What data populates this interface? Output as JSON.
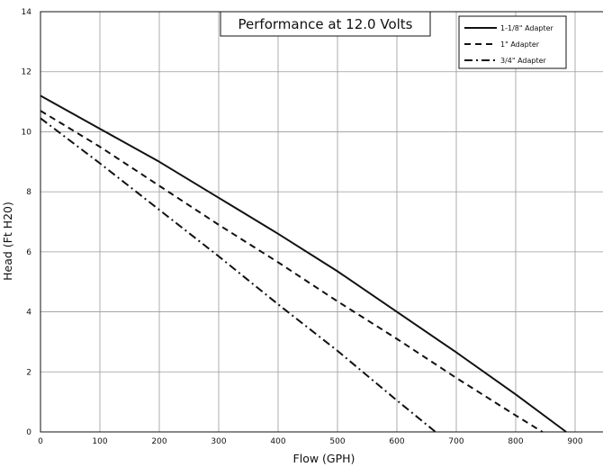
{
  "chart_data": {
    "type": "line",
    "title": "Performance at 12.0 Volts",
    "xlabel": "Flow (GPH)",
    "ylabel": "Head (Ft H20)",
    "xlim": [
      0,
      950
    ],
    "ylim": [
      0,
      14
    ],
    "xticks": [
      0,
      100,
      200,
      300,
      400,
      500,
      600,
      700,
      800,
      900
    ],
    "yticks": [
      0,
      2,
      4,
      6,
      8,
      10,
      12,
      14
    ],
    "grid": true,
    "legend_position": "top-right",
    "series": [
      {
        "name": "1-1/8\" Adapter",
        "line_style": "solid",
        "color": "#111111",
        "x": [
          0,
          100,
          200,
          300,
          400,
          500,
          600,
          700,
          800,
          885
        ],
        "y": [
          11.2,
          10.1,
          9.0,
          7.8,
          6.6,
          5.35,
          4.0,
          2.65,
          1.25,
          0
        ]
      },
      {
        "name": "1\" Adapter",
        "line_style": "dashed",
        "color": "#111111",
        "x": [
          0,
          100,
          200,
          300,
          400,
          500,
          600,
          700,
          800,
          845
        ],
        "y": [
          10.7,
          9.5,
          8.2,
          6.9,
          5.65,
          4.35,
          3.1,
          1.8,
          0.55,
          0
        ]
      },
      {
        "name": "3/4\" Adapter",
        "line_style": "dash-dot",
        "color": "#111111",
        "x": [
          0,
          100,
          200,
          300,
          400,
          500,
          600,
          665
        ],
        "y": [
          10.45,
          8.95,
          7.4,
          5.85,
          4.25,
          2.7,
          1.05,
          0
        ]
      }
    ]
  }
}
